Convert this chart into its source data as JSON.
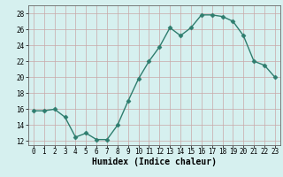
{
  "x": [
    0,
    1,
    2,
    3,
    4,
    5,
    6,
    7,
    8,
    9,
    10,
    11,
    12,
    13,
    14,
    15,
    16,
    17,
    18,
    19,
    20,
    21,
    22,
    23
  ],
  "y": [
    15.8,
    15.8,
    16.0,
    15.0,
    12.5,
    13.0,
    12.2,
    12.2,
    14.0,
    17.0,
    19.8,
    22.0,
    23.8,
    26.2,
    25.2,
    26.2,
    27.8,
    27.8,
    27.6,
    27.0,
    25.2,
    22.0,
    21.5,
    20.0
  ],
  "line_color": "#2e7d6e",
  "marker": "D",
  "markersize": 2.5,
  "linewidth": 1.0,
  "xlabel": "Humidex (Indice chaleur)",
  "ylabel": "",
  "xlim": [
    -0.5,
    23.5
  ],
  "ylim": [
    11.5,
    29.0
  ],
  "yticks": [
    12,
    14,
    16,
    18,
    20,
    22,
    24,
    26,
    28
  ],
  "xticks": [
    0,
    1,
    2,
    3,
    4,
    5,
    6,
    7,
    8,
    9,
    10,
    11,
    12,
    13,
    14,
    15,
    16,
    17,
    18,
    19,
    20,
    21,
    22,
    23
  ],
  "bg_color": "#d6f0ef",
  "grid_color": "#c8a8a8",
  "tick_fontsize": 5.5,
  "label_fontsize": 7,
  "title": ""
}
